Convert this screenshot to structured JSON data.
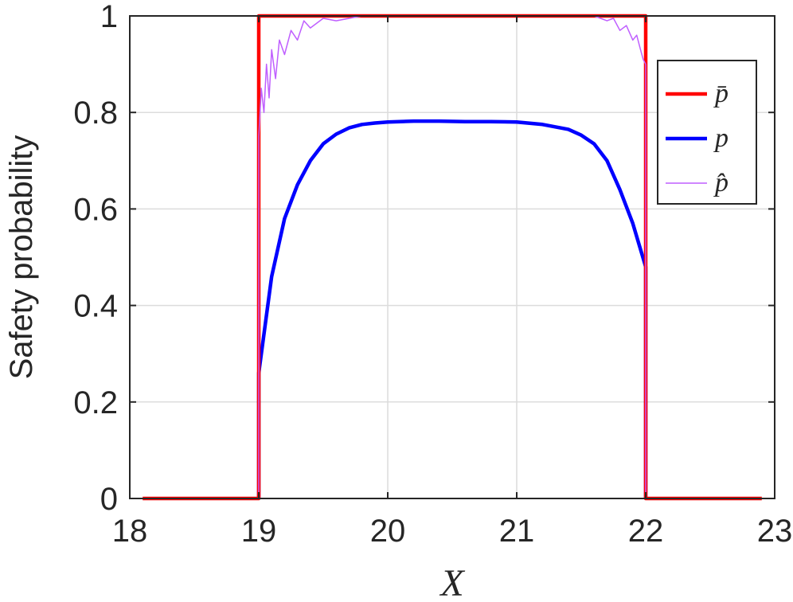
{
  "chart_data": {
    "type": "line",
    "xlabel": "X",
    "ylabel": "Safety probability",
    "xlim": [
      18,
      23
    ],
    "ylim": [
      0,
      1
    ],
    "xticks": [
      "18",
      "19",
      "20",
      "21",
      "22",
      "23"
    ],
    "yticks": [
      "0",
      "0.2",
      "0.4",
      "0.6",
      "0.8",
      "1"
    ],
    "grid": true,
    "legend_position": "top-right",
    "series": [
      {
        "name": "p̄",
        "color": "#ff0000",
        "x": [
          18.1,
          19.0,
          19.0,
          22.0,
          22.0,
          22.9
        ],
        "y": [
          0,
          0,
          1,
          1,
          0,
          0
        ]
      },
      {
        "name": "p",
        "color": "#0000ff",
        "x": [
          19.0,
          19.0,
          19.1,
          19.2,
          19.3,
          19.4,
          19.5,
          19.6,
          19.7,
          19.8,
          19.9,
          20.0,
          20.2,
          20.4,
          20.6,
          20.8,
          21.0,
          21.2,
          21.4,
          21.5,
          21.6,
          21.7,
          21.8,
          21.9,
          22.0,
          22.0
        ],
        "y": [
          0.0,
          0.26,
          0.46,
          0.58,
          0.65,
          0.7,
          0.735,
          0.755,
          0.768,
          0.775,
          0.778,
          0.78,
          0.782,
          0.782,
          0.781,
          0.781,
          0.78,
          0.775,
          0.765,
          0.753,
          0.735,
          0.7,
          0.64,
          0.57,
          0.48,
          0.0
        ]
      },
      {
        "name": "p̂",
        "color": "#bf5fff",
        "x": [
          18.1,
          19.0,
          19.0,
          19.02,
          19.04,
          19.06,
          19.08,
          19.1,
          19.13,
          19.16,
          19.2,
          19.25,
          19.3,
          19.35,
          19.4,
          19.5,
          19.6,
          19.8,
          20.0,
          21.0,
          21.6,
          21.7,
          21.75,
          21.8,
          21.85,
          21.9,
          21.93,
          21.96,
          21.98,
          22.0,
          22.0,
          22.9
        ],
        "y": [
          0,
          0,
          0.75,
          0.85,
          0.8,
          0.9,
          0.83,
          0.93,
          0.87,
          0.95,
          0.92,
          0.97,
          0.95,
          0.99,
          0.975,
          0.995,
          0.99,
          1.0,
          1.0,
          1.0,
          1.0,
          0.99,
          0.995,
          0.97,
          0.98,
          0.95,
          0.96,
          0.93,
          0.91,
          0.9,
          0,
          0
        ]
      }
    ]
  }
}
